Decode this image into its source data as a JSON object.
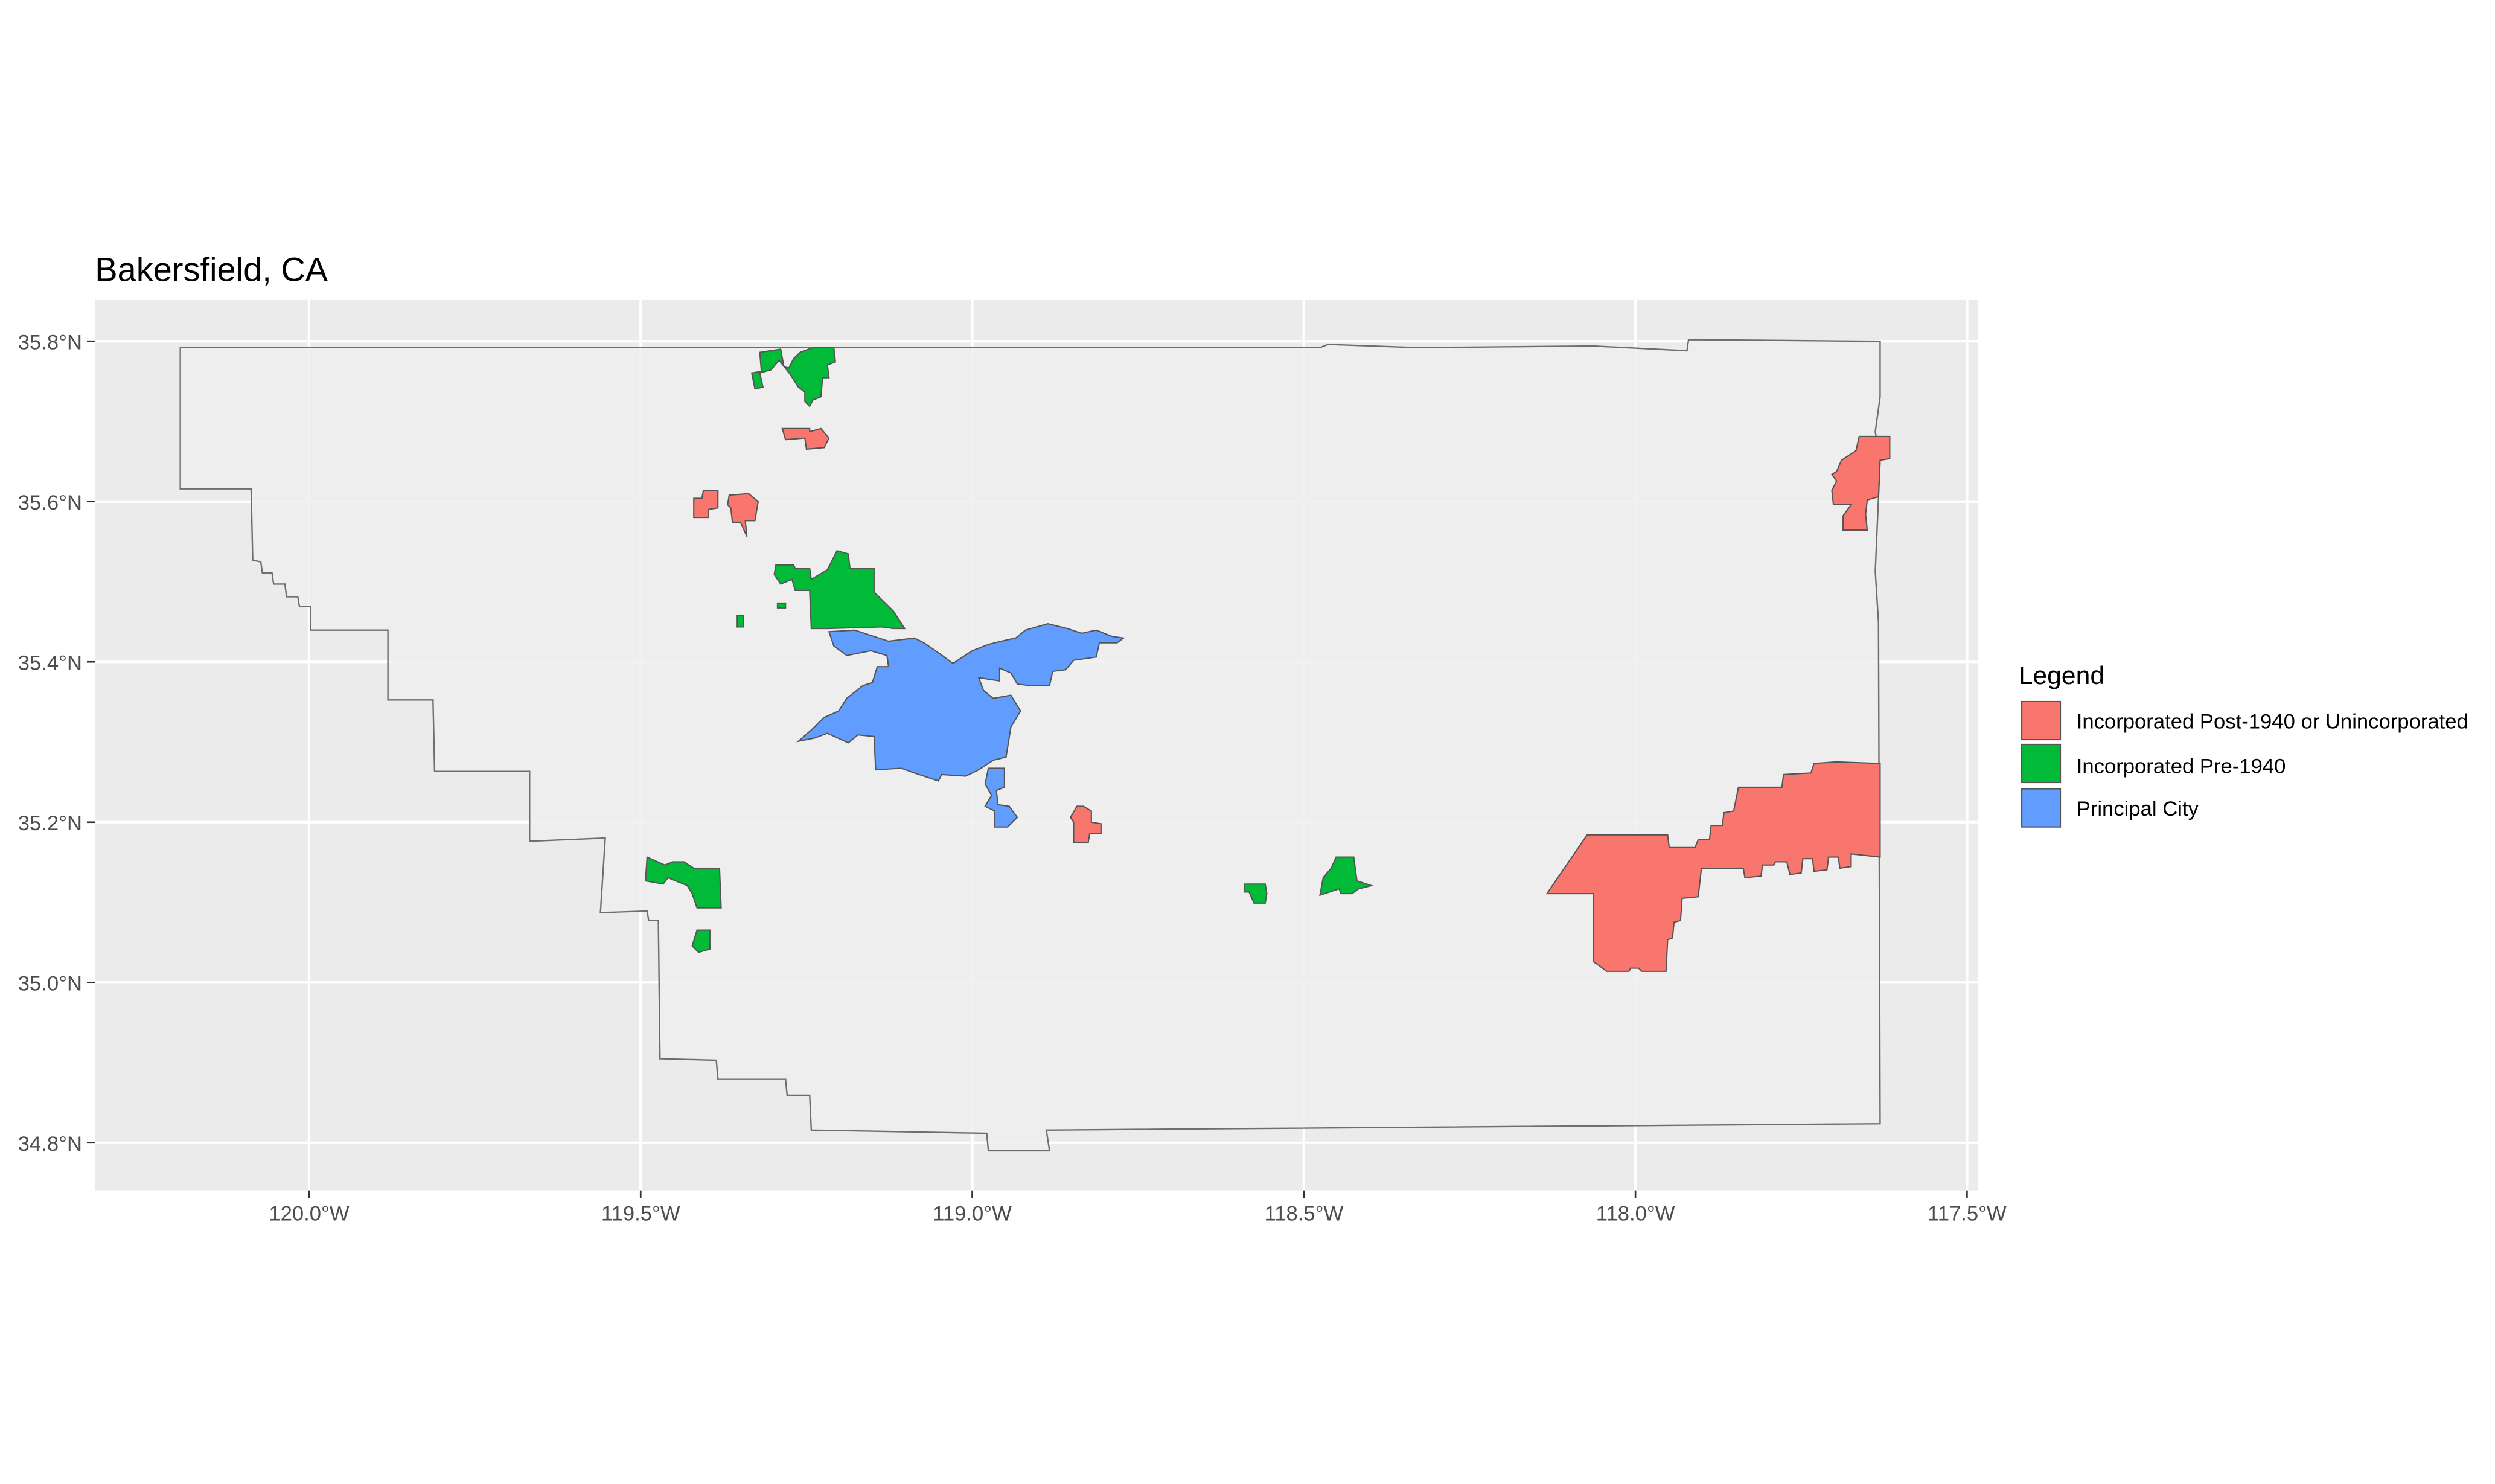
{
  "title": "Bakersfield, CA",
  "colors": {
    "panel_background": "#ebebeb",
    "county_fill": "#eeeeee",
    "county_border": "#6e6e6e",
    "grid": "#ffffff",
    "post_1940": "#f8766d",
    "pre_1940": "#00ba38",
    "principal": "#619cff"
  },
  "axes": {
    "x_ticks": [
      "120.0°W",
      "119.5°W",
      "119.0°W",
      "118.5°W",
      "118.0°W",
      "117.5°W"
    ],
    "y_ticks": [
      "35.8°N",
      "35.6°N",
      "35.4°N",
      "35.2°N",
      "35.0°N",
      "34.8°N"
    ],
    "xlim": [
      -120.32,
      -117.49
    ],
    "ylim": [
      34.74,
      35.85
    ]
  },
  "legend": {
    "title": "Legend",
    "placement": "right",
    "items": [
      {
        "label": "Incorporated Post-1940 or Unincorporated",
        "color": "#f8766d"
      },
      {
        "label": "Incorporated Pre-1940",
        "color": "#00ba38"
      },
      {
        "label": "Principal City",
        "color": "#619cff"
      }
    ]
  }
}
